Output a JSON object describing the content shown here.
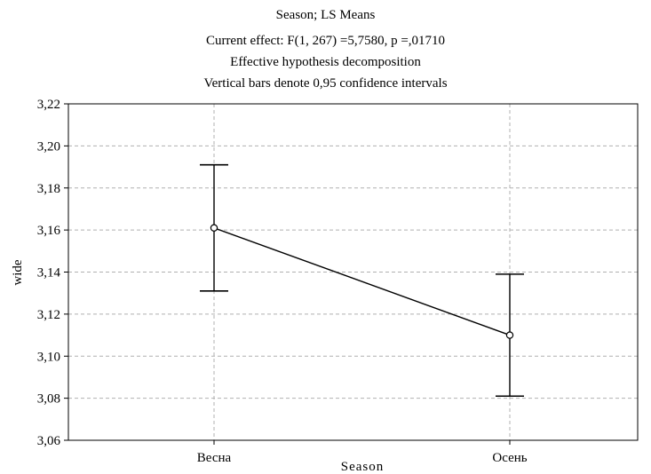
{
  "chart_data": {
    "type": "line",
    "title": "Season; LS Means",
    "subtitle": [
      "Current effect: F(1, 267) =5,7580, p =,01710",
      "Effective hypothesis decomposition",
      "Vertical bars denote 0,95 confidence intervals"
    ],
    "xlabel": "Season",
    "ylabel": "wide",
    "categories": [
      "Весна",
      "Осень"
    ],
    "values": [
      3.161,
      3.11
    ],
    "ci_lower": [
      3.131,
      3.081
    ],
    "ci_upper": [
      3.191,
      3.139
    ],
    "ylim": [
      3.06,
      3.22
    ],
    "yticks": [
      3.06,
      3.08,
      3.1,
      3.12,
      3.14,
      3.16,
      3.18,
      3.2,
      3.22
    ],
    "ytick_labels": [
      "3,06",
      "3,08",
      "3,10",
      "3,12",
      "3,14",
      "3,16",
      "3,18",
      "3,20",
      "3,22"
    ],
    "grid": true,
    "grid_style": "dashed",
    "line_color": "#000000",
    "grid_color": "#b0b0b0"
  }
}
